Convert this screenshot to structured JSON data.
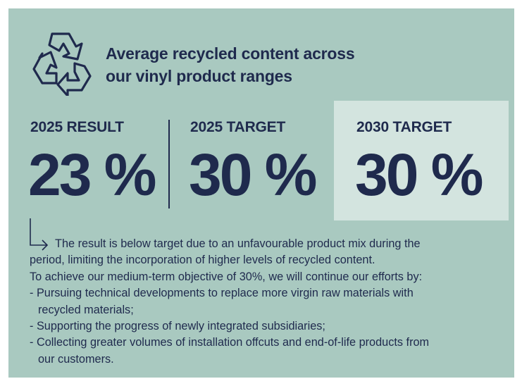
{
  "header": {
    "title_lines": [
      "Average recycled content across",
      "our vinyl product ranges"
    ]
  },
  "kpis": [
    {
      "label": "2025 RESULT",
      "value": "23 %"
    },
    {
      "label": "2025 TARGET",
      "value": "30 %"
    },
    {
      "label": "2030 TARGET",
      "value": "30 %"
    }
  ],
  "note": {
    "lines": [
      "The result is below target due to an unfavourable product mix during the",
      "period, limiting the incorporation of higher levels of recycled content.",
      "To achieve our medium-term objective of 30%, we will continue our efforts by:",
      "- Pursuing technical developments to replace more virgin raw materials with",
      "recycled materials;",
      "- Supporting the progress of newly integrated subsidiaries;",
      "- Collecting greater volumes of installation offcuts and end-of-life products from",
      "our customers."
    ]
  }
}
